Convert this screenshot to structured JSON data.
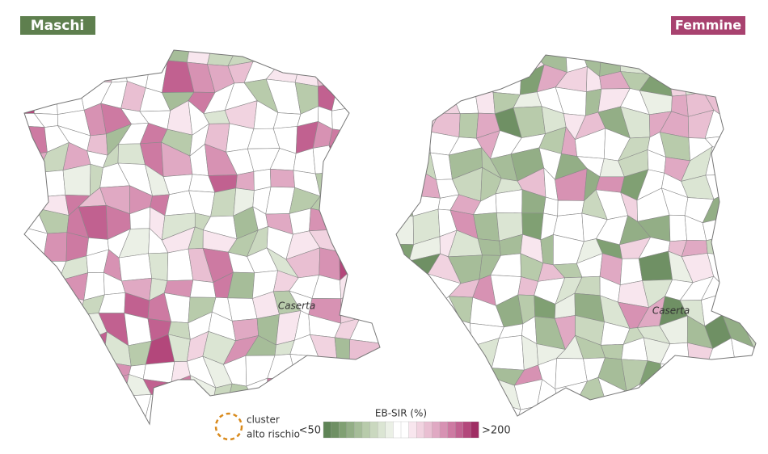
{
  "panels": {
    "left": {
      "label": "Maschi",
      "city": "Caserta"
    },
    "right": {
      "label": "Femmine",
      "city": "Caserta"
    }
  },
  "legend": {
    "cluster_line1": "cluster",
    "cluster_line2": "alto rischio",
    "title": "EB-SIR (%)",
    "low": "<50",
    "high": ">200",
    "colors": [
      "#5f8456",
      "#6f9064",
      "#80a073",
      "#93ae86",
      "#a6bd99",
      "#b8cbab",
      "#cad8bf",
      "#dbe5d3",
      "#ebf0e6",
      "#ffffff",
      "#ffffff",
      "#f8e6ee",
      "#f1d3e0",
      "#e9bfd2",
      "#e0a9c3",
      "#d792b3",
      "#cd7aa2",
      "#c16190",
      "#b3477b",
      "#9f2d63"
    ]
  }
}
